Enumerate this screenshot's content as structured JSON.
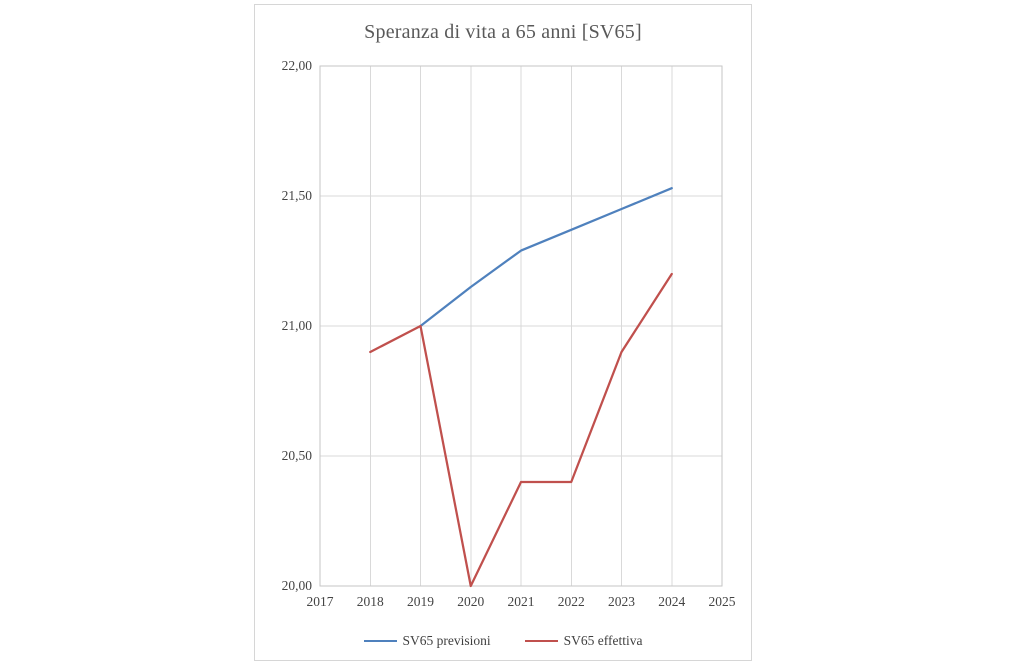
{
  "chart": {
    "title_color": "#595959",
    "tick_color": "#444444",
    "grid_color": "#d9d9d9",
    "plot_border_color": "#c6c6c6",
    "frame_border_color": "#d6d6d6",
    "background": "#ffffff"
  },
  "chart_data": {
    "type": "line",
    "title": "Speranza di vita a 65 anni [SV65]",
    "xlabel": "",
    "ylabel": "",
    "xlim": [
      2017,
      2025
    ],
    "ylim": [
      20.0,
      22.0
    ],
    "x_ticks": [
      "2017",
      "2018",
      "2019",
      "2020",
      "2021",
      "2022",
      "2023",
      "2024",
      "2025"
    ],
    "y_ticks": [
      {
        "value": 22.0,
        "label": "22,00"
      },
      {
        "value": 21.5,
        "label": "21,50"
      },
      {
        "value": 21.0,
        "label": "21,00"
      },
      {
        "value": 20.5,
        "label": "20,50"
      },
      {
        "value": 20.0,
        "label": "20,00"
      }
    ],
    "grid": true,
    "legend_position": "bottom",
    "series": [
      {
        "name": "SV65 previsioni",
        "color": "#4f81bd",
        "points": [
          [
            2019,
            21.0
          ],
          [
            2020,
            21.15
          ],
          [
            2021,
            21.29
          ],
          [
            2022,
            21.37
          ],
          [
            2023,
            21.45
          ],
          [
            2024,
            21.53
          ]
        ]
      },
      {
        "name": "SV65 effettiva",
        "color": "#c0504d",
        "points": [
          [
            2018,
            20.9
          ],
          [
            2019,
            21.0
          ],
          [
            2020,
            20.0
          ],
          [
            2021,
            20.4
          ],
          [
            2022,
            20.4
          ],
          [
            2023,
            20.9
          ],
          [
            2024,
            21.2
          ]
        ]
      }
    ]
  }
}
